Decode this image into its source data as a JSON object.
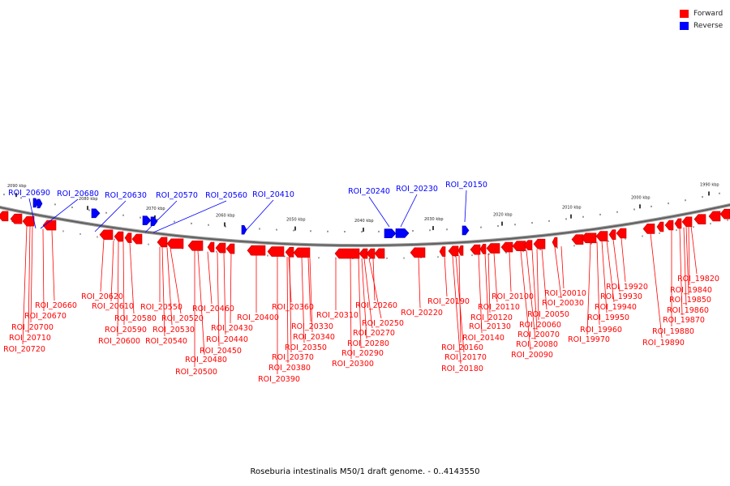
{
  "legend": {
    "forward_label": "Forward",
    "reverse_label": "Reverse",
    "forward_color": "#ff0000",
    "reverse_color": "#0000ff"
  },
  "caption": "Roseburia intestinalis M50/1 draft genome. - 0..4143550",
  "scale": {
    "ticks": [
      {
        "label": "2090 kbp"
      },
      {
        "label": "2080 kbp"
      },
      {
        "label": "2070 kbp"
      },
      {
        "label": "2060 kbp"
      },
      {
        "label": "2050 kbp"
      },
      {
        "label": "2040 kbp"
      },
      {
        "label": "2030 kbp"
      },
      {
        "label": "2020 kbp"
      },
      {
        "label": "2010 kbp"
      },
      {
        "label": "2000 kbp"
      },
      {
        "label": "1990 kbp"
      }
    ]
  },
  "reverse_labels": [
    "ROI_20690",
    "ROI_20680",
    "ROI_20630",
    "ROI_20570",
    "ROI_20560",
    "ROI_20410",
    "ROI_20240",
    "ROI_20230",
    "ROI_20150"
  ],
  "forward_labels": [
    "ROI_20660",
    "ROI_20670",
    "ROI_20700",
    "ROI_20710",
    "ROI_20720",
    "ROI_20620",
    "ROI_20610",
    "ROI_20580",
    "ROI_20590",
    "ROI_20600",
    "ROI_20550",
    "ROI_20520",
    "ROI_20530",
    "ROI_20540",
    "ROI_20460",
    "ROI_20430",
    "ROI_20440",
    "ROI_20450",
    "ROI_20480",
    "ROI_20500",
    "ROI_20400",
    "ROI_20360",
    "ROI_20330",
    "ROI_20340",
    "ROI_20350",
    "ROI_20370",
    "ROI_20380",
    "ROI_20390",
    "ROI_20310",
    "ROI_20260",
    "ROI_20250",
    "ROI_20270",
    "ROI_20280",
    "ROI_20290",
    "ROI_20300",
    "ROI_20220",
    "ROI_20190",
    "ROI_20110",
    "ROI_20120",
    "ROI_20130",
    "ROI_20140",
    "ROI_20160",
    "ROI_20170",
    "ROI_20180",
    "ROI_20100",
    "ROI_20050",
    "ROI_20060",
    "ROI_20070",
    "ROI_20080",
    "ROI_20090",
    "ROI_20010",
    "ROI_20030",
    "ROI_19920",
    "ROI_19930",
    "ROI_19940",
    "ROI_19950",
    "ROI_19960",
    "ROI_19970",
    "ROI_19820",
    "ROI_19840",
    "ROI_19850",
    "ROI_19860",
    "ROI_19870",
    "ROI_19880",
    "ROI_19890"
  ]
}
